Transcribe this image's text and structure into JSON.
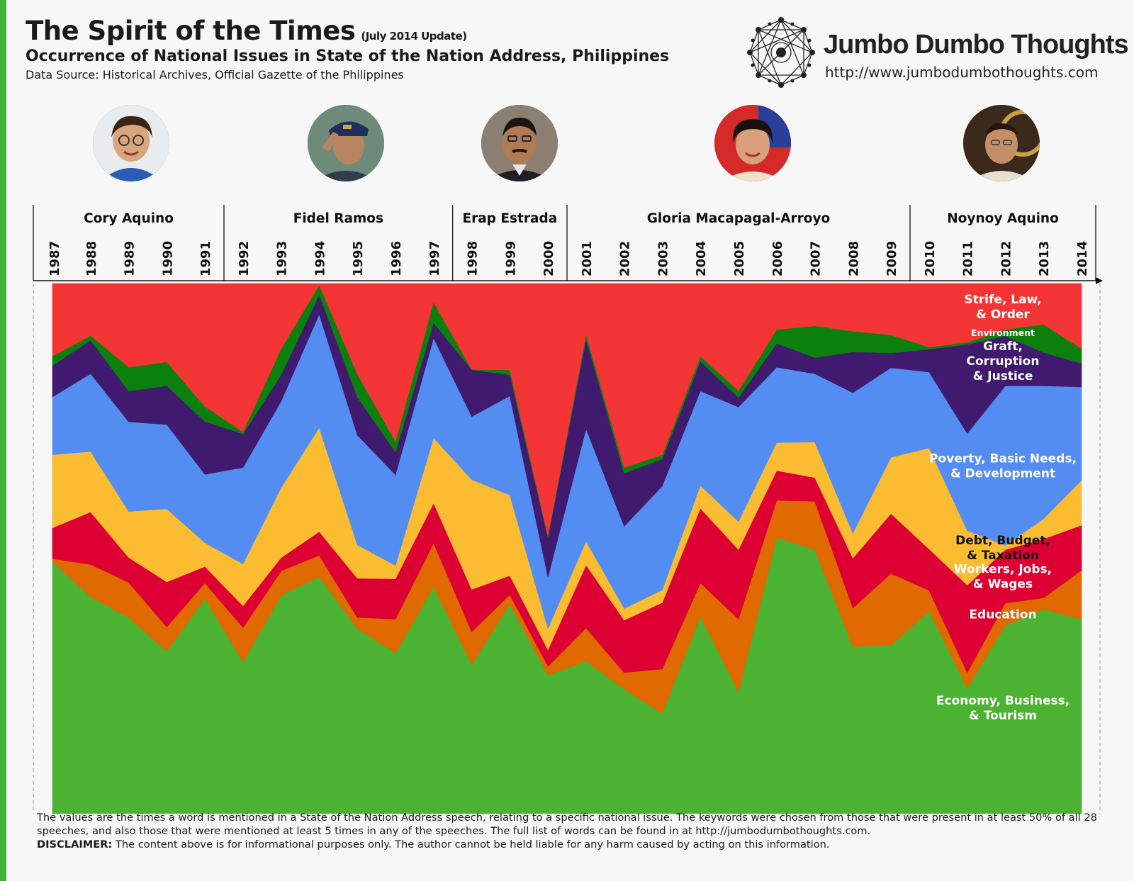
{
  "header": {
    "title": "The Spirit of the Times",
    "update": "(July 2014 Update)",
    "subtitle": "Occurrence of National Issues in State of the Nation Address, Philippines",
    "source": "Data Source: Historical Archives, Official Gazette of the Philippines"
  },
  "brand": {
    "name": "Jumbo Dumbo Thoughts",
    "url": "http://www.jumbodumbothoughts.com"
  },
  "presidents": [
    {
      "name": "Cory Aquino",
      "start": 1987,
      "end": 1991
    },
    {
      "name": "Fidel Ramos",
      "start": 1992,
      "end": 1997
    },
    {
      "name": "Erap Estrada",
      "start": 1998,
      "end": 2000
    },
    {
      "name": "Gloria Macapagal-Arroyo",
      "start": 2001,
      "end": 2009
    },
    {
      "name": "Noynoy Aquino",
      "start": 2010,
      "end": 2014
    }
  ],
  "chart_data": {
    "type": "area",
    "stacked": true,
    "normalized": true,
    "x": [
      1987,
      1988,
      1989,
      1990,
      1991,
      1992,
      1993,
      1994,
      1995,
      1996,
      1997,
      1998,
      1999,
      2000,
      2001,
      2002,
      2003,
      2004,
      2005,
      2006,
      2007,
      2008,
      2009,
      2010,
      2011,
      2012,
      2013,
      2014
    ],
    "series": [
      {
        "name": "Economy, Business, & Tourism",
        "color": "#4bb232",
        "values": [
          47.5,
          40.9,
          37.0,
          30.6,
          40.6,
          28.6,
          41.2,
          44.7,
          34.9,
          30.3,
          42.8,
          28.1,
          39.5,
          26.1,
          28.8,
          23.5,
          18.9,
          37.2,
          22.9,
          52.1,
          49.8,
          31.5,
          31.8,
          38.2,
          23.7,
          35.5,
          38.6,
          36.6
        ]
      },
      {
        "name": "Education",
        "color": "#e06900",
        "values": [
          0.6,
          6.1,
          6.6,
          4.6,
          2.9,
          6.5,
          4.6,
          4.0,
          2.1,
          6.4,
          8.2,
          6.2,
          1.8,
          1.7,
          6.2,
          3.1,
          8.4,
          6.3,
          13.8,
          7.0,
          9.1,
          7.3,
          13.5,
          3.9,
          2.9,
          4.2,
          2.1,
          9.3
        ]
      },
      {
        "name": "Workers, Jobs, & Wages",
        "color": "#dd0033",
        "values": [
          5.8,
          9.9,
          4.7,
          8.5,
          3.1,
          4.1,
          2.5,
          4.5,
          7.4,
          7.6,
          7.6,
          8.0,
          3.6,
          3.1,
          11.9,
          9.9,
          12.5,
          14.1,
          13.1,
          5.6,
          4.5,
          9.4,
          11.3,
          7.8,
          16.5,
          10.1,
          11.1,
          8.5
        ]
      },
      {
        "name": "Debt, Budget, & Taxation",
        "color": "#fbbc31",
        "values": [
          13.8,
          11.4,
          8.7,
          13.8,
          4.5,
          7.9,
          13.2,
          19.6,
          6.3,
          2.5,
          12.3,
          20.7,
          15.2,
          4.0,
          4.5,
          2.2,
          2.4,
          4.3,
          5.3,
          5.3,
          6.7,
          4.7,
          10.6,
          19.1,
          10.3,
          0.8,
          3.8,
          8.5
        ]
      },
      {
        "name": "Poverty, Basic Needs, & Development",
        "color": "#548df2",
        "values": [
          10.9,
          14.7,
          16.9,
          15.9,
          12.9,
          18.2,
          16.3,
          21.4,
          20.7,
          17.1,
          18.8,
          11.9,
          18.7,
          9.7,
          21.2,
          15.5,
          19.6,
          17.8,
          21.6,
          14.2,
          12.9,
          26.5,
          16.9,
          14.3,
          18.3,
          30.1,
          25.1,
          17.6
        ]
      },
      {
        "name": "Graft, Corruption & Justice",
        "color": "#3f1a6e",
        "values": [
          5.9,
          6.3,
          5.8,
          7.3,
          10.0,
          6.3,
          5.0,
          3.7,
          7.2,
          4.3,
          2.9,
          8.8,
          4.0,
          7.5,
          16.9,
          10.0,
          5.1,
          5.6,
          1.8,
          4.5,
          3.0,
          7.7,
          2.8,
          4.3,
          16.8,
          9.4,
          6.3,
          4.4
        ]
      },
      {
        "name": "Environment",
        "color": "#0b800d",
        "values": [
          1.8,
          0.9,
          4.5,
          4.5,
          2.8,
          0.4,
          4.9,
          1.8,
          4.3,
          2.0,
          3.9,
          0.1,
          0.9,
          0.3,
          0.9,
          1.1,
          0.8,
          1.0,
          1.3,
          2.6,
          6.0,
          3.9,
          3.4,
          0.4,
          0.4,
          1.2,
          5.3,
          2.8
        ]
      },
      {
        "name": "Strife, Law, & Order",
        "color": "#f33535",
        "values": [
          13.7,
          9.8,
          15.8,
          14.8,
          23.2,
          28.0,
          12.3,
          0.3,
          17.1,
          29.8,
          3.5,
          16.2,
          16.3,
          47.6,
          9.6,
          34.7,
          32.3,
          13.7,
          20.2,
          8.7,
          8.0,
          9.0,
          9.7,
          12.0,
          11.1,
          8.7,
          7.7,
          12.3
        ]
      }
    ],
    "series_labels": [
      {
        "lines": [
          "Economy, Business,",
          "& Tourism"
        ],
        "color": "#ffffff"
      },
      {
        "lines": [
          "Education"
        ],
        "color": "#ffffff"
      },
      {
        "lines": [
          "Workers, Jobs,",
          "& Wages"
        ],
        "color": "#ffffff"
      },
      {
        "lines": [
          "Debt, Budget,",
          "& Taxation"
        ],
        "color": "#111111"
      },
      {
        "lines": [
          "Poverty, Basic Needs,",
          "& Development"
        ],
        "color": "#ffffff"
      },
      {
        "lines": [
          "Graft,",
          "Corruption",
          "& Justice"
        ],
        "color": "#ffffff"
      },
      {
        "lines": [
          "Environment"
        ],
        "color": "#ffffff"
      },
      {
        "lines": [
          "Strife, Law,",
          "& Order"
        ],
        "color": "#ffffff"
      }
    ]
  },
  "footer": {
    "note": "The values are the times a word is mentioned in a State of the Nation Address speech, relating to a specific national issue. The keywords were chosen from those that were present in at least 50% of all 28 speeches, and also those that were mentioned at least 5 times in any of the speeches. The full list of words can be found in at http://jumbodumbothoughts.com.",
    "disclaimer_label": "DISCLAIMER:",
    "disclaimer": "The content above is for informational purposes only. The author cannot be held liable for any harm caused by acting on this information."
  }
}
